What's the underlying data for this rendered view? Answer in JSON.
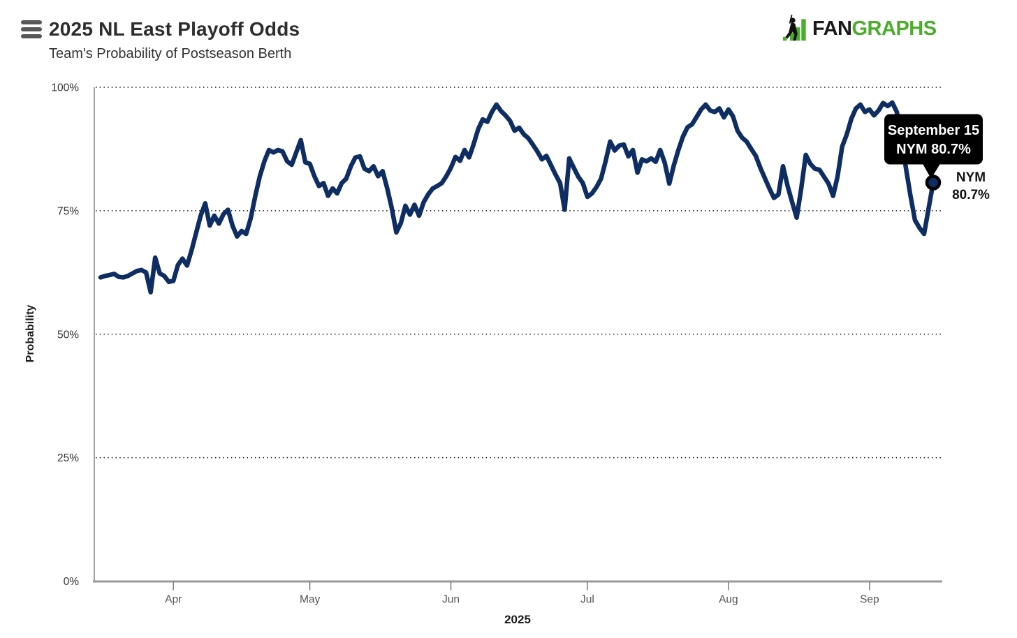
{
  "menu": {
    "icon": "hamburger-menu-icon"
  },
  "logo": {
    "prefix": "FAN",
    "suffix": "GRAPHS",
    "black_color": "#1a1a1a",
    "green_color": "#4cad2c",
    "mark": "batter-with-bars-logo-mark"
  },
  "chart_data": {
    "type": "line",
    "title": "2025 NL East Playoff Odds",
    "subtitle": "Team's Probability of Postseason Berth",
    "ylabel": "Probability",
    "xlabel": "2025",
    "ylim": [
      0,
      100
    ],
    "grid": "dotted horizontal lines every 25%",
    "legend": false,
    "y_ticks": {
      "values": [
        0,
        25,
        50,
        75,
        100
      ],
      "labels": [
        "0%",
        "25%",
        "50%",
        "75%",
        "100%"
      ]
    },
    "x_ticks": {
      "labels": [
        "Apr",
        "May",
        "Jun",
        "Jul",
        "Aug",
        "Sep"
      ],
      "day_index": [
        16,
        46,
        77,
        107,
        138,
        169
      ]
    },
    "series": [
      {
        "name": "NYM",
        "color": "#0e2d62",
        "cadence": "daily",
        "values": [
          61.5,
          61.8,
          62.0,
          62.2,
          61.6,
          61.5,
          61.8,
          62.3,
          62.8,
          63.0,
          62.5,
          58.5,
          65.5,
          62.3,
          61.8,
          60.6,
          60.8,
          64.0,
          65.3,
          63.9,
          67.0,
          70.5,
          74.0,
          76.5,
          72.0,
          74.0,
          72.4,
          74.3,
          75.2,
          72.0,
          69.8,
          70.9,
          70.3,
          73.5,
          78.0,
          82.0,
          85.0,
          87.3,
          86.8,
          87.3,
          87.0,
          85.0,
          84.3,
          86.8,
          89.3,
          84.8,
          84.5,
          82.0,
          80.0,
          80.6,
          78.0,
          79.5,
          78.5,
          80.6,
          81.5,
          84.0,
          85.8,
          86.0,
          83.5,
          83.0,
          84.0,
          82.0,
          83.0,
          79.5,
          75.5,
          70.6,
          72.5,
          76.0,
          74.2,
          76.2,
          74.0,
          76.7,
          78.3,
          79.5,
          80.0,
          80.6,
          82.0,
          83.7,
          85.9,
          85.1,
          87.3,
          85.8,
          88.5,
          91.5,
          93.5,
          93.0,
          95.0,
          96.5,
          95.2,
          94.3,
          93.2,
          91.2,
          91.8,
          90.5,
          89.7,
          88.4,
          87.0,
          85.4,
          86.1,
          84.2,
          82.3,
          80.6,
          75.2,
          85.6,
          83.7,
          81.9,
          80.6,
          77.8,
          78.5,
          79.8,
          81.5,
          85.0,
          89.0,
          87.2,
          88.2,
          88.4,
          86.0,
          87.3,
          82.7,
          85.4,
          85.0,
          85.6,
          84.9,
          87.3,
          84.7,
          80.5,
          84.2,
          87.3,
          90.0,
          91.9,
          92.5,
          94.0,
          95.5,
          96.5,
          95.3,
          95.0,
          95.7,
          93.9,
          95.5,
          94.1,
          91.2,
          89.8,
          89.0,
          87.5,
          86.1,
          83.7,
          81.6,
          79.5,
          77.6,
          78.3,
          84.0,
          80.0,
          76.7,
          73.6,
          79.5,
          86.3,
          84.5,
          83.5,
          83.3,
          81.9,
          80.5,
          78.0,
          82.0,
          88.0,
          90.4,
          93.6,
          95.7,
          96.5,
          95.0,
          95.5,
          94.3,
          95.3,
          96.8,
          96.2,
          96.9,
          95.0,
          90.5,
          83.7,
          78.1,
          73.1,
          71.5,
          70.3,
          75.5,
          80.7
        ]
      }
    ],
    "end_marker": {
      "day_index": 183,
      "value": 80.7
    },
    "end_label": {
      "line1": "NYM",
      "line2": "80.7%"
    },
    "tooltip": {
      "line1": "September 15",
      "line2": "NYM 80.7%",
      "bg": "#000000",
      "text_color": "#ffffff"
    }
  }
}
